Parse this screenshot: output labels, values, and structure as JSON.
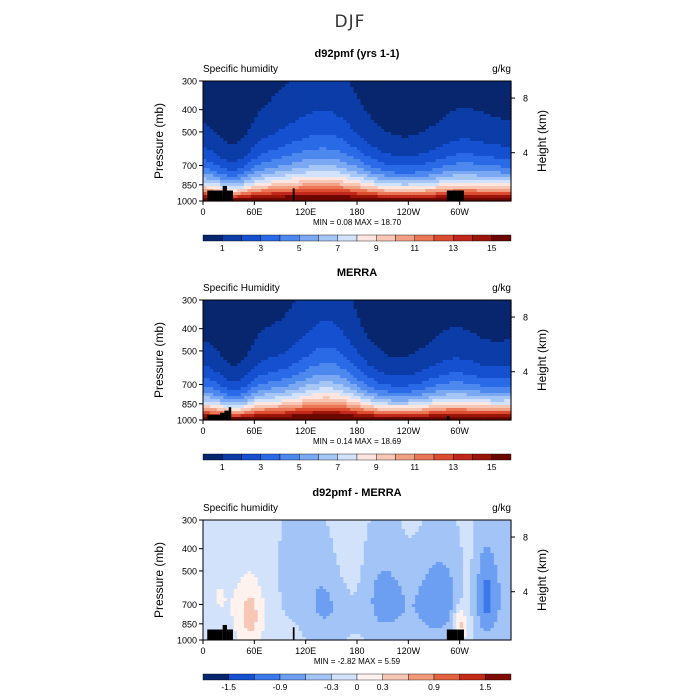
{
  "page": {
    "title": "DJF"
  },
  "colors": {
    "full_scale": [
      "#08266e",
      "#0b3ca8",
      "#1450d0",
      "#2a6ae6",
      "#4d88ee",
      "#7aa8f2",
      "#a6c6f6",
      "#d2e2fa",
      "#fde6e0",
      "#f8c6b4",
      "#f2a084",
      "#ea7656",
      "#dc4c30",
      "#c2281a",
      "#9a1408",
      "#6a0800"
    ],
    "diff_scale": [
      "#08266e",
      "#1450d0",
      "#3a78ec",
      "#6c9ef2",
      "#a2c4f6",
      "#d2e2fa",
      "#fdf2ee",
      "#f8c6b4",
      "#f29a7a",
      "#e4623e",
      "#c42a16",
      "#7e0c02"
    ],
    "topography": "#000000"
  },
  "chart_data": [
    {
      "type": "heatmap",
      "title": "d92pmf (yrs 1-1)",
      "left_label": "Specific humidity",
      "right_label": "g/kg",
      "ylabel": "Pressure (mb)",
      "ylabel_right": "Height (km)",
      "x_ticks": [
        "0",
        "60E",
        "120E",
        "180",
        "120W",
        "60W"
      ],
      "x_tick_lon": [
        0,
        60,
        120,
        180,
        240,
        300
      ],
      "y_ticks": [
        "300",
        "400",
        "500",
        "700",
        "850",
        "1000"
      ],
      "y_tick_p": [
        300,
        400,
        500,
        700,
        850,
        1000
      ],
      "right_ticks": [
        "8",
        "4"
      ],
      "right_tick_p": [
        356,
        616
      ],
      "stats": "MIN =    0.08   MAX =   18.70",
      "min": 0.08,
      "max": 18.7,
      "colorbar_labels": [
        "1",
        "3",
        "5",
        "7",
        "9",
        "11",
        "13",
        "15"
      ],
      "field": "full"
    },
    {
      "type": "heatmap",
      "title": "MERRA",
      "left_label": "Specific Humidity",
      "right_label": "g/kg",
      "ylabel": "Pressure (mb)",
      "ylabel_right": "Height (km)",
      "x_ticks": [
        "0",
        "60E",
        "120E",
        "180",
        "120W",
        "60W"
      ],
      "x_tick_lon": [
        0,
        60,
        120,
        180,
        240,
        300
      ],
      "y_ticks": [
        "300",
        "400",
        "500",
        "700",
        "850",
        "1000"
      ],
      "y_tick_p": [
        300,
        400,
        500,
        700,
        850,
        1000
      ],
      "right_ticks": [
        "8",
        "4"
      ],
      "right_tick_p": [
        356,
        616
      ],
      "stats": "MIN =    0.14   MAX =   18.69",
      "min": 0.14,
      "max": 18.69,
      "colorbar_labels": [
        "1",
        "3",
        "5",
        "7",
        "9",
        "11",
        "13",
        "15"
      ],
      "field": "full"
    },
    {
      "type": "heatmap",
      "title": "d92pmf - MERRA",
      "left_label": "Specific humidity",
      "right_label": "g/kg",
      "ylabel": "Pressure (mb)",
      "ylabel_right": "Height (km)",
      "x_ticks": [
        "0",
        "60E",
        "120E",
        "180",
        "120W",
        "60W"
      ],
      "x_tick_lon": [
        0,
        60,
        120,
        180,
        240,
        300
      ],
      "y_ticks": [
        "300",
        "400",
        "500",
        "700",
        "850",
        "1000"
      ],
      "y_tick_p": [
        300,
        400,
        500,
        700,
        850,
        1000
      ],
      "right_ticks": [
        "8",
        "4"
      ],
      "right_tick_p": [
        356,
        616
      ],
      "stats": "MIN =  -2.82   MAX =    5.59",
      "min": -2.82,
      "max": 5.59,
      "colorbar_labels": [
        "-1.5",
        "-0.9",
        "-0.3",
        "0",
        "0.3",
        "0.9",
        "1.5"
      ],
      "field": "diff"
    }
  ]
}
